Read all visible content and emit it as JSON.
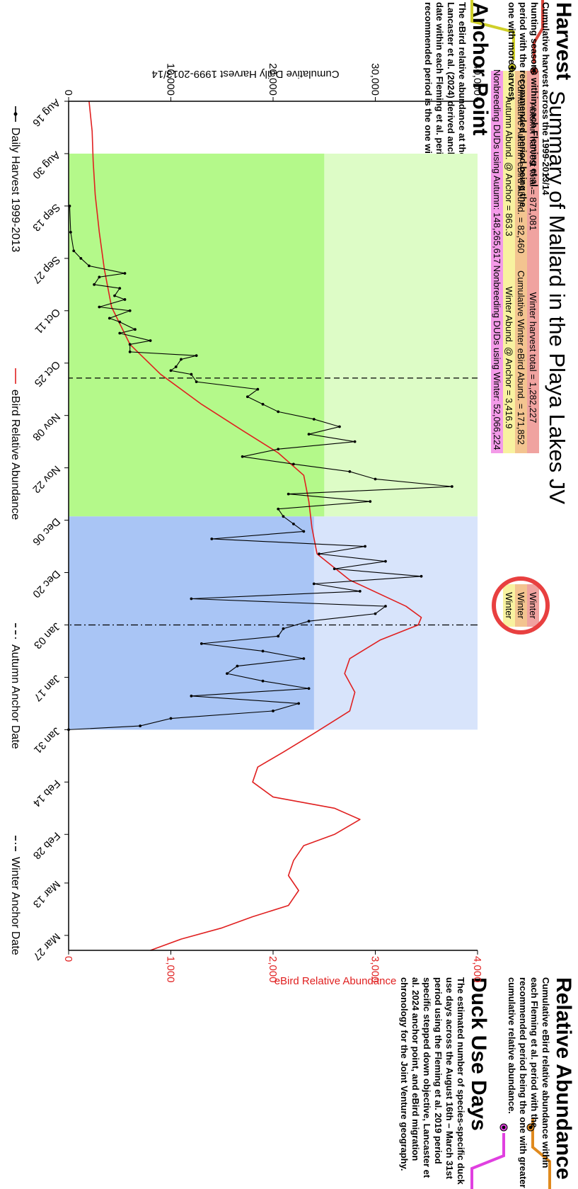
{
  "title": "Summary of Mallard in the Playa Lakes JV",
  "side_panels": [
    {
      "heading": "Harvest",
      "color": "#d9453b",
      "body": "Cumulative harvest across the 1999-2013/14 hunting seasons within each Fleming et al. period with the recommended period being the one with more harvest."
    },
    {
      "heading": "Anchor Point",
      "color": "#cfcf2a",
      "body": "The eBird relative abundance at the Lancaster et al. (2024) derived anchor point date within each Fleming et al. period. The recommended period is the one with the"
    },
    {
      "heading": "Relative Abundance",
      "color": "#e08a1e",
      "body": "Cumulative eBird relative abundance within each Fleming et al. period with the recommended period being the one with greater cumulative relative abundance."
    },
    {
      "heading": "Duck Use Days",
      "color": "#e040e0",
      "body": "The estimated number of species-specific duck use days across the August 16th – March 31st period using the Fleming et al. 2019 period specific stepped down objective, Lancaster et al. 2024 anchor point, and eBird migration chronology for the Joint Venture geography."
    }
  ],
  "stats": [
    {
      "autumn": "Autumn harvest total =  871,081",
      "winter": "Winter harvest total =  1,282,227",
      "color": "#f0a3a0"
    },
    {
      "autumn": "Cumulative Autumn eBird Abund. =  82,460",
      "winter": "Cumulative Winter eBird Abund. =  171,852",
      "color": "#f3c490"
    },
    {
      "autumn": "Autumn Abund. @ Anchor =  863.3",
      "winter": "Winter Abund. @ Anchor =  3,416.9",
      "color": "#f8f2a0"
    },
    {
      "autumn": "Nonbreeding DUDs using Autumn: 148,265,617",
      "winter": "Nonbreeding DUDs using Winter: 52,066,224",
      "color": "#f39be8"
    }
  ],
  "recommendation": [
    "Winter",
    "Winter",
    "Winter"
  ],
  "highlight_color": "#e84040",
  "legend": [
    {
      "label": "Daily Harvest 1999-2013",
      "style": "point-line",
      "color": "#000000"
    },
    {
      "label": "eBird Relative Abundance",
      "style": "line",
      "color": "#e02020"
    },
    {
      "label": "Autumn Anchor Date",
      "style": "dashed",
      "color": "#000000"
    },
    {
      "label": "Winter Anchor Date",
      "style": "dashdot",
      "color": "#000000"
    }
  ],
  "chart_data": {
    "type": "line",
    "x_ticks": [
      "Aug 16",
      "Aug 30",
      "Sep 13",
      "Sep 27",
      "Oct 11",
      "Oct 25",
      "Nov 08",
      "Nov 22",
      "Dec 06",
      "Dec 20",
      "Jan 03",
      "Jan 17",
      "Jan 31",
      "Feb 14",
      "Feb 28",
      "Mar 13",
      "Mar 27"
    ],
    "xlabel": "",
    "ylabel": "Cumulative Daily Harvest 1999-2013/14",
    "ylim": [
      0,
      40000
    ],
    "y_ticks": [
      0,
      10000,
      20000,
      30000,
      40000
    ],
    "y_tick_labels": [
      "0",
      "10,000",
      "20,000",
      "30,000",
      "40,000"
    ],
    "y2label": "eBird Relative Abundance",
    "y2lim": [
      0,
      4000
    ],
    "y2_ticks": [
      0,
      1000,
      2000,
      3000,
      4000
    ],
    "y2_tick_labels": [
      "0",
      "1,000",
      "2,000",
      "3,000",
      "4,000"
    ],
    "periods": [
      {
        "name": "Autumn",
        "start": "Aug 30",
        "end": "Dec 05",
        "color_light": "#ddfcc6",
        "color_dark": "#b4f98a",
        "level": 25000
      },
      {
        "name": "Winter",
        "start": "Dec 05",
        "end": "Jan 31",
        "color_light": "#d8e4fb",
        "color_dark": "#a9c5f5",
        "level": 24000
      }
    ],
    "autumn_anchor_date": "Oct 29",
    "winter_anchor_date": "Jan 03",
    "series": [
      {
        "name": "Daily Harvest 1999-2013",
        "axis": "left",
        "x": [
          "Sep 13",
          "Sep 20",
          "Sep 25",
          "Sep 27",
          "Sep 29",
          "Oct 01",
          "Oct 02",
          "Oct 04",
          "Oct 05",
          "Oct 07",
          "Oct 08",
          "Oct 10",
          "Oct 11",
          "Oct 13",
          "Oct 14",
          "Oct 16",
          "Oct 17",
          "Oct 19",
          "Oct 20",
          "Oct 22",
          "Oct 23",
          "Oct 24",
          "Oct 26",
          "Oct 27",
          "Oct 28",
          "Oct 30",
          "Nov 01",
          "Nov 03",
          "Nov 05",
          "Nov 07",
          "Nov 09",
          "Nov 11",
          "Nov 13",
          "Nov 15",
          "Nov 17",
          "Nov 19",
          "Nov 21",
          "Nov 23",
          "Nov 25",
          "Nov 27",
          "Nov 29",
          "Dec 01",
          "Dec 03",
          "Dec 05",
          "Dec 07",
          "Dec 09",
          "Dec 11",
          "Dec 13",
          "Dec 15",
          "Dec 17",
          "Dec 19",
          "Dec 21",
          "Dec 23",
          "Dec 25",
          "Dec 27",
          "Dec 29",
          "Dec 31",
          "Jan 02",
          "Jan 04",
          "Jan 06",
          "Jan 08",
          "Jan 10",
          "Jan 12",
          "Jan 14",
          "Jan 16",
          "Jan 18",
          "Jan 20",
          "Jan 22",
          "Jan 24",
          "Jan 26",
          "Jan 28",
          "Jan 30",
          "Jan 31"
        ],
        "y": [
          100,
          200,
          500,
          1200,
          2000,
          5500,
          3000,
          2500,
          5000,
          4500,
          5500,
          3000,
          6000,
          4000,
          5000,
          6500,
          5000,
          8000,
          6000,
          6000,
          12500,
          11000,
          10500,
          10000,
          12000,
          12500,
          18500,
          17500,
          19000,
          20500,
          24000,
          26500,
          23500,
          28000,
          20500,
          17000,
          22000,
          27500,
          30000,
          37500,
          21500,
          29500,
          20500,
          21000,
          22000,
          23000,
          14000,
          29000,
          24500,
          31000,
          26000,
          34500,
          24000,
          28500,
          12000,
          31000,
          30000,
          23500,
          21000,
          20500,
          13000,
          19000,
          23000,
          16500,
          15500,
          19000,
          23500,
          12000,
          22500,
          20000,
          10000,
          7000,
          0
        ]
      },
      {
        "name": "eBird Relative Abundance",
        "axis": "right",
        "x": [
          "Aug 16",
          "Aug 24",
          "Sep 01",
          "Sep 10",
          "Sep 20",
          "Sep 30",
          "Oct 10",
          "Oct 20",
          "Oct 28",
          "Nov 05",
          "Nov 12",
          "Nov 18",
          "Nov 24",
          "Dec 01",
          "Dec 08",
          "Dec 15",
          "Dec 22",
          "Dec 29",
          "Jan 01",
          "Jan 03",
          "Jan 07",
          "Jan 12",
          "Jan 16",
          "Jan 21",
          "Jan 26",
          "Feb 01",
          "Feb 06",
          "Feb 10",
          "Feb 14",
          "Feb 18",
          "Feb 21",
          "Feb 24",
          "Feb 28",
          "Mar 03",
          "Mar 07",
          "Mar 11",
          "Mar 15",
          "Mar 19",
          "Mar 22",
          "Mar 25",
          "Mar 28",
          "Mar 31"
        ],
        "y": [
          200,
          230,
          240,
          260,
          300,
          350,
          420,
          600,
          900,
          1300,
          1700,
          2050,
          2300,
          2350,
          2380,
          2430,
          2750,
          3300,
          3450,
          3420,
          3050,
          2750,
          2700,
          2800,
          2750,
          2400,
          2100,
          1850,
          1800,
          2000,
          2600,
          2850,
          2600,
          2300,
          2200,
          2150,
          2250,
          2150,
          1800,
          1500,
          1100,
          800
        ]
      }
    ]
  }
}
